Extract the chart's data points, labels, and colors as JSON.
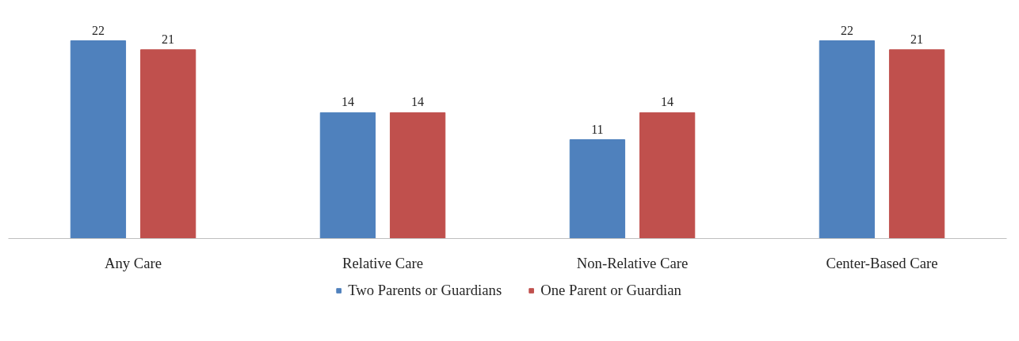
{
  "chart_data": {
    "type": "bar",
    "categories": [
      "Any Care",
      "Relative Care",
      "Non-Relative Care",
      "Center-Based Care"
    ],
    "series": [
      {
        "name": "Two Parents or Guardians",
        "color": "#4f81bd",
        "values": [
          22,
          14,
          11,
          22
        ]
      },
      {
        "name": "One Parent or Guardian",
        "color": "#c0504d",
        "values": [
          21,
          14,
          14,
          21
        ]
      }
    ],
    "data_labels": true,
    "legend": "bottom",
    "grid": false
  }
}
